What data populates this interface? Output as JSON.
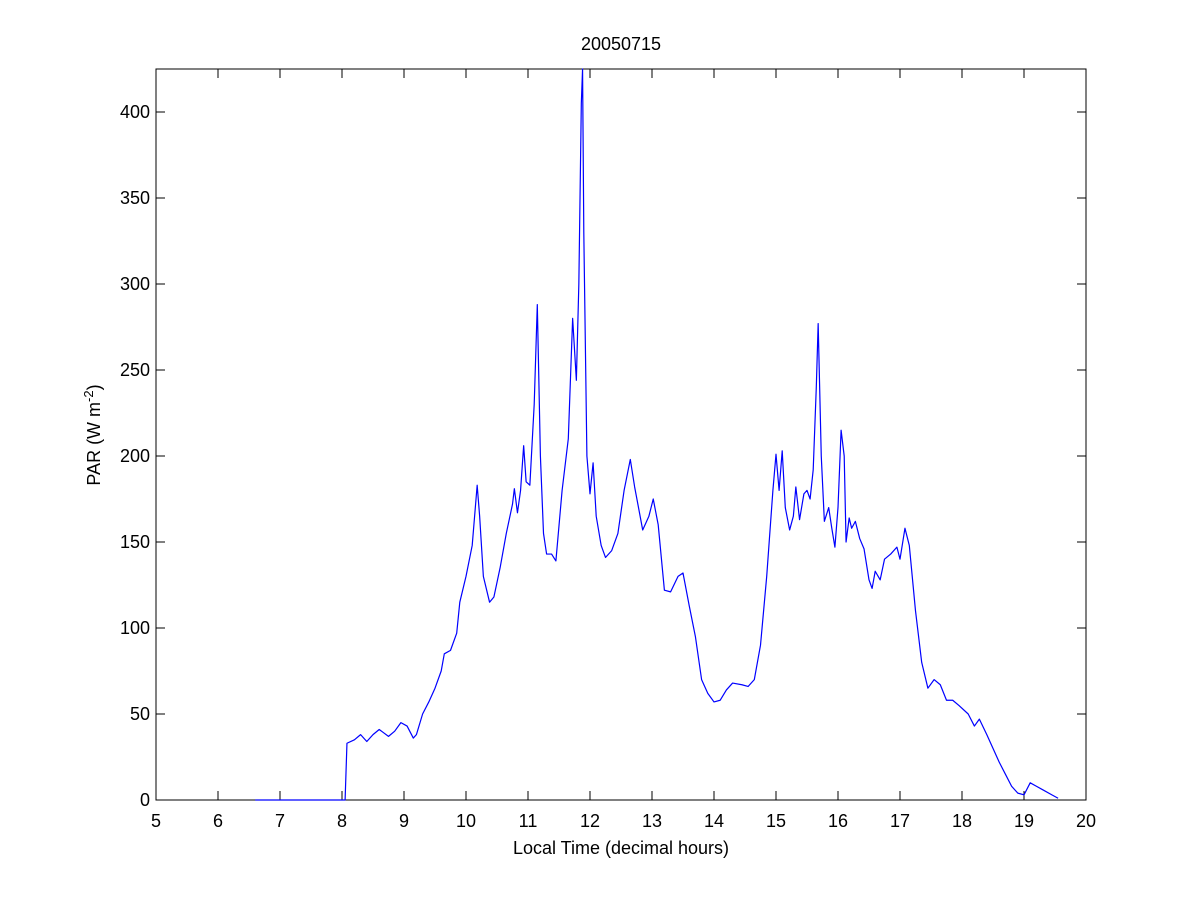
{
  "chart_data": {
    "type": "line",
    "title": "20050715",
    "xlabel": "Local Time (decimal hours)",
    "ylabel": [
      "PAR (W m",
      "-2",
      ")"
    ],
    "xlim": [
      5,
      20
    ],
    "xticks": [
      5,
      6,
      7,
      8,
      9,
      10,
      11,
      12,
      13,
      14,
      15,
      16,
      17,
      18,
      19,
      20
    ],
    "ylim": [
      0,
      425
    ],
    "yticks": [
      0,
      50,
      100,
      150,
      200,
      250,
      300,
      350,
      400
    ],
    "grid": false,
    "series": [
      {
        "color": "#0000ff",
        "x": [
          6.6,
          8.05,
          8.08,
          8.2,
          8.3,
          8.4,
          8.5,
          8.6,
          8.75,
          8.85,
          8.95,
          9.05,
          9.15,
          9.2,
          9.3,
          9.4,
          9.5,
          9.6,
          9.65,
          9.75,
          9.85,
          9.9,
          10.0,
          10.1,
          10.18,
          10.22,
          10.28,
          10.38,
          10.45,
          10.55,
          10.65,
          10.75,
          10.78,
          10.83,
          10.88,
          10.93,
          10.97,
          11.03,
          11.1,
          11.15,
          11.2,
          11.25,
          11.3,
          11.38,
          11.45,
          11.55,
          11.65,
          11.72,
          11.78,
          11.82,
          11.86,
          11.88,
          11.9,
          11.95,
          12.0,
          12.05,
          12.1,
          12.18,
          12.25,
          12.35,
          12.45,
          12.55,
          12.65,
          12.72,
          12.85,
          12.95,
          13.02,
          13.1,
          13.2,
          13.3,
          13.42,
          13.5,
          13.6,
          13.7,
          13.8,
          13.9,
          14.0,
          14.1,
          14.2,
          14.3,
          14.45,
          14.55,
          14.65,
          14.75,
          14.85,
          14.95,
          15.0,
          15.05,
          15.1,
          15.15,
          15.22,
          15.28,
          15.32,
          15.38,
          15.45,
          15.5,
          15.55,
          15.6,
          15.65,
          15.68,
          15.73,
          15.78,
          15.85,
          15.9,
          15.95,
          16.0,
          16.05,
          16.1,
          16.13,
          16.18,
          16.22,
          16.28,
          16.35,
          16.42,
          16.5,
          16.55,
          16.6,
          16.68,
          16.75,
          16.85,
          16.95,
          17.0,
          17.08,
          17.15,
          17.25,
          17.35,
          17.45,
          17.55,
          17.65,
          17.75,
          17.85,
          17.95,
          18.1,
          18.2,
          18.28,
          18.4,
          18.5,
          18.6,
          18.7,
          18.8,
          18.9,
          19.0,
          19.1,
          19.2,
          19.3,
          19.45,
          19.55
        ],
        "values": [
          0,
          0,
          33,
          35,
          38,
          34,
          38,
          41,
          37,
          40,
          45,
          43,
          36,
          38,
          50,
          57,
          65,
          75,
          85,
          87,
          97,
          115,
          130,
          148,
          183,
          165,
          130,
          115,
          118,
          135,
          155,
          172,
          181,
          167,
          180,
          206,
          185,
          183,
          230,
          288,
          200,
          155,
          143,
          143,
          139,
          180,
          210,
          280,
          244,
          300,
          405,
          425,
          330,
          200,
          178,
          196,
          165,
          148,
          141,
          145,
          155,
          180,
          198,
          182,
          157,
          165,
          175,
          160,
          122,
          121,
          130,
          132,
          113,
          95,
          70,
          62,
          57,
          58,
          64,
          68,
          67,
          66,
          70,
          90,
          130,
          180,
          201,
          180,
          203,
          170,
          157,
          165,
          182,
          163,
          178,
          180,
          175,
          192,
          240,
          277,
          200,
          162,
          170,
          158,
          147,
          170,
          215,
          200,
          150,
          164,
          158,
          162,
          152,
          146,
          128,
          123,
          133,
          128,
          140,
          143,
          147,
          140,
          158,
          148,
          110,
          80,
          65,
          70,
          67,
          58,
          58,
          55,
          50,
          43,
          47,
          38,
          30,
          22,
          15,
          8,
          4,
          3,
          10,
          8,
          6,
          3,
          1
        ]
      }
    ]
  }
}
